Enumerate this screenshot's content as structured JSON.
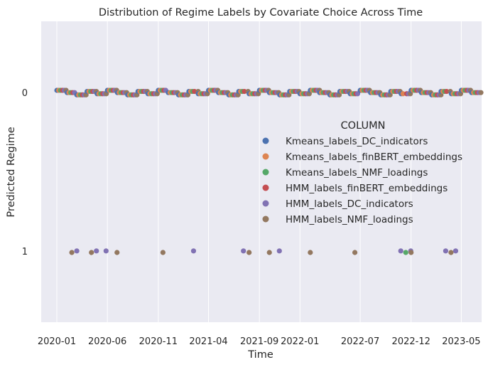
{
  "chart_data": {
    "type": "scatter",
    "title": "Distribution of Regime Labels by Covariate Choice Across Time",
    "xlabel": "Time",
    "ylabel": "Predicted Regime",
    "x_axis_type": "date",
    "xlim": [
      "2019-11-15",
      "2023-07-01"
    ],
    "ylim": [
      -0.45,
      1.45
    ],
    "y_inverted": true,
    "x_ticks": [
      {
        "date": "2020-01-01",
        "label": "2020-01"
      },
      {
        "date": "2020-06-01",
        "label": "2020-06"
      },
      {
        "date": "2020-11-01",
        "label": "2020-11"
      },
      {
        "date": "2021-04-01",
        "label": "2021-04"
      },
      {
        "date": "2021-09-01",
        "label": "2021-09"
      },
      {
        "date": "2022-01-01",
        "label": "2022-01"
      },
      {
        "date": "2022-07-01",
        "label": "2022-07"
      },
      {
        "date": "2022-12-01",
        "label": "2022-12"
      },
      {
        "date": "2023-05-01",
        "label": "2023-05"
      }
    ],
    "y_ticks": [
      {
        "value": 0,
        "label": "0"
      },
      {
        "value": 1,
        "label": "1"
      }
    ],
    "grid": true,
    "background": "#EAEAF2",
    "legend": {
      "title": "COLUMN",
      "placement": "center-right"
    },
    "series": [
      {
        "name": "Kmeans_labels_DC_indicators",
        "color": "#4C72B0",
        "regime1_dates": []
      },
      {
        "name": "Kmeans_labels_finBERT_embeddings",
        "color": "#DD8452",
        "regime1_dates": []
      },
      {
        "name": "Kmeans_labels_NMF_loadings",
        "color": "#55A868",
        "regime1_dates": [
          "2022-11-15"
        ]
      },
      {
        "name": "HMM_labels_finBERT_embeddings",
        "color": "#C44E52",
        "regime1_dates": []
      },
      {
        "name": "HMM_labels_DC_indicators",
        "color": "#8172B3",
        "regime1_dates": [
          "2020-03-01",
          "2020-04-29",
          "2020-05-28",
          "2021-02-15",
          "2021-07-15",
          "2021-10-31",
          "2022-10-31",
          "2022-11-30",
          "2023-03-15",
          "2023-04-14"
        ]
      },
      {
        "name": "HMM_labels_NMF_loadings",
        "color": "#937860",
        "regime1_dates": [
          "2020-02-15",
          "2020-04-14",
          "2020-06-30",
          "2020-11-15",
          "2021-08-01",
          "2021-10-01",
          "2022-02-01",
          "2022-06-15",
          "2022-12-01",
          "2023-03-31"
        ]
      }
    ]
  }
}
